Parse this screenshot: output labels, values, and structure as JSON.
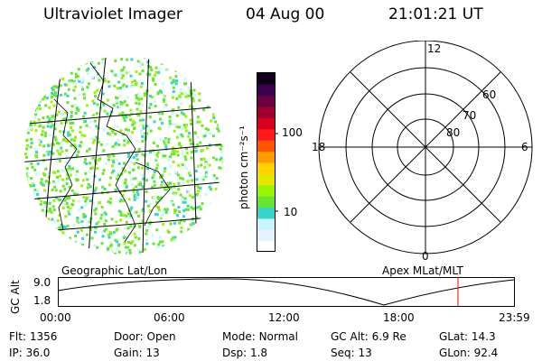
{
  "header": {
    "instrument": "Ultraviolet Imager",
    "date": "04 Aug 00",
    "time": "21:01:21  UT"
  },
  "colorbar": {
    "unit_label": "photon cm⁻²s⁻¹",
    "ticks": [
      "100",
      "10"
    ],
    "colors": [
      "#ffffff",
      "#e6f2ff",
      "#c8f5ff",
      "#33d6c7",
      "#66e633",
      "#99f500",
      "#e6e600",
      "#ffd200",
      "#ff9a00",
      "#ff5500",
      "#ff1a1a",
      "#d8001a",
      "#a0002e",
      "#6a0040",
      "#3d0050",
      "#10001a"
    ]
  },
  "polar": {
    "mlt_labels": {
      "top": "12",
      "left": "18",
      "right": "6",
      "bottom": "0"
    },
    "lat_labels": [
      "60",
      "70",
      "80"
    ]
  },
  "altitude_plot": {
    "left_label": "Geographic Lat/Lon",
    "right_label": "Apex MLat/MLT",
    "axis_title": "GC Alt",
    "y_ticks": [
      "9.0",
      "1.8"
    ],
    "x_ticks": [
      "00:00",
      "06:00",
      "12:00",
      "18:00",
      "23:59"
    ]
  },
  "info": [
    {
      "label": "Flt:",
      "value": "1356"
    },
    {
      "label": "IP:",
      "value": "36.0"
    },
    {
      "label": "Door:",
      "value": "Open"
    },
    {
      "label": "Gain:",
      "value": "13"
    },
    {
      "label": "Mode:",
      "value": "Normal"
    },
    {
      "label": "Dsp:",
      "value": "1.8"
    },
    {
      "label": "GC Alt:",
      "value": "6.9 Re"
    },
    {
      "label": "Seq:",
      "value": "13"
    },
    {
      "label": "GLat:",
      "value": "14.3"
    },
    {
      "label": "GLon:",
      "value": "92.4"
    }
  ]
}
